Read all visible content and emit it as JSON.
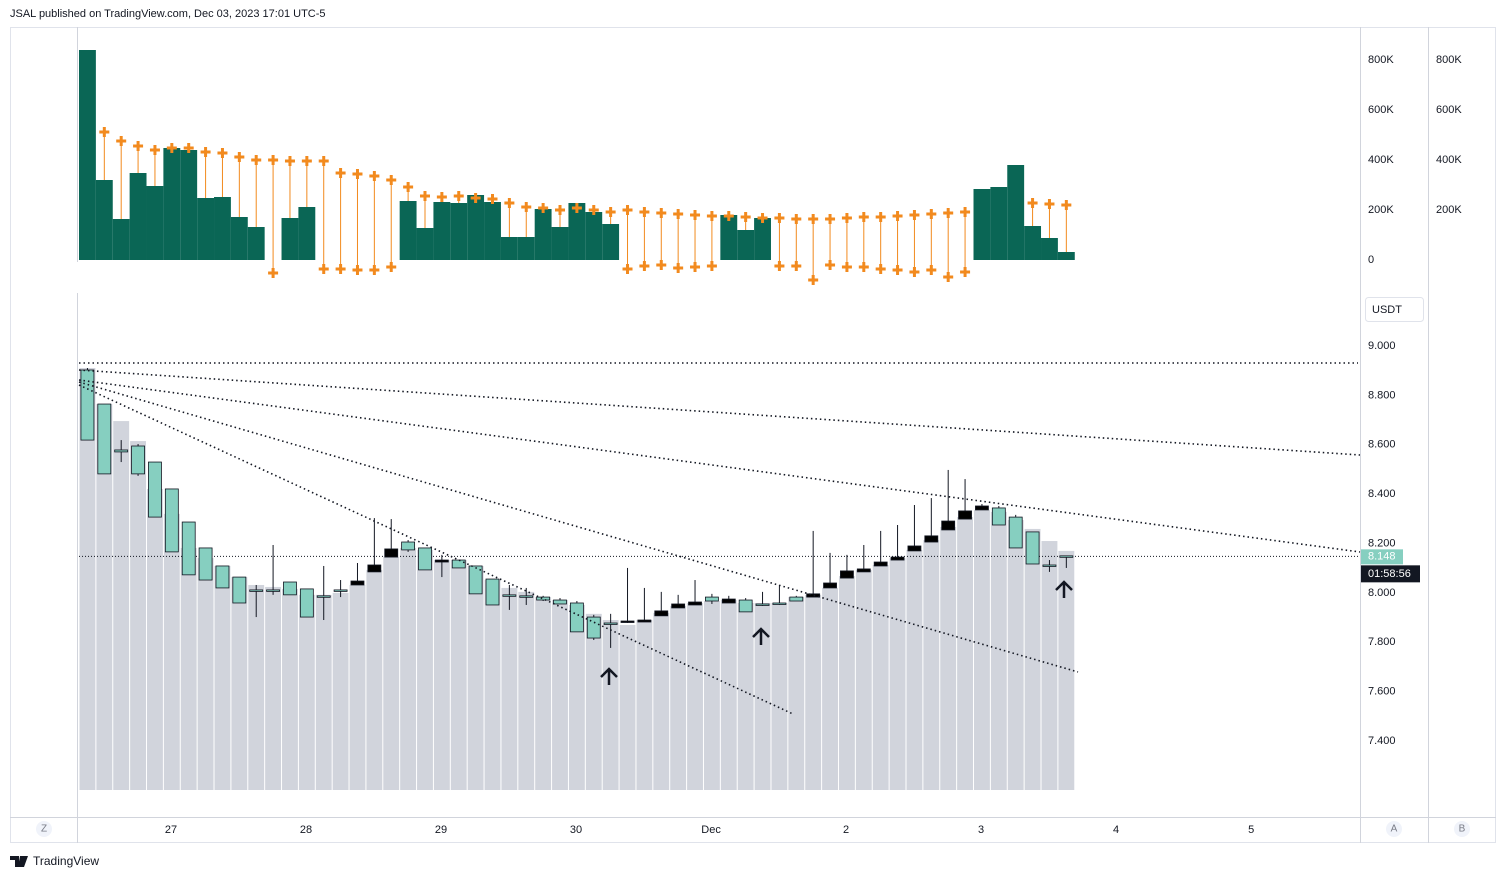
{
  "header": "JSAL published on TradingView.com, Dec 03, 2023 17:01 UTC-5",
  "brand": "TradingView",
  "buttons": [
    "Z",
    "A",
    "B"
  ],
  "currency": "USDT",
  "countdown": "01:58:56",
  "chart_data": [
    {
      "type": "volume",
      "ylim": [
        -120000,
        932000
      ],
      "yticks": [
        0,
        {
          "value": 200000,
          "label": "200K"
        },
        {
          "value": 400000,
          "label": "400K"
        },
        {
          "value": 600000,
          "label": "600K"
        },
        {
          "value": 800000,
          "label": "800K"
        }
      ],
      "color": "#0a6655",
      "cross_color": "#f28a1e",
      "values": [
        840000,
        320000,
        164000,
        348000,
        296000,
        448000,
        440000,
        248000,
        252000,
        172000,
        132000,
        null,
        168000,
        212000,
        null,
        null,
        null,
        null,
        null,
        236000,
        128000,
        232000,
        228000,
        260000,
        232000,
        92000,
        92000,
        204000,
        132000,
        228000,
        192000,
        144000,
        null,
        null,
        null,
        null,
        null,
        null,
        180000,
        120000,
        168000,
        null,
        null,
        null,
        null,
        null,
        null,
        null,
        null,
        null,
        null,
        null,
        null,
        284000,
        292000,
        380000,
        136000,
        88000,
        32000
      ],
      "upper": [
        null,
        512000,
        476000,
        456000,
        440000,
        448000,
        448000,
        432000,
        428000,
        412000,
        400000,
        400000,
        396000,
        396000,
        396000,
        348000,
        344000,
        336000,
        320000,
        292000,
        256000,
        252000,
        256000,
        248000,
        244000,
        228000,
        212000,
        208000,
        200000,
        208000,
        200000,
        192000,
        200000,
        192000,
        188000,
        184000,
        180000,
        176000,
        176000,
        172000,
        168000,
        168000,
        164000,
        164000,
        164000,
        168000,
        172000,
        172000,
        176000,
        180000,
        184000,
        188000,
        192000,
        null,
        null,
        null,
        228000,
        224000,
        220000
      ],
      "lower": [
        null,
        null,
        null,
        null,
        null,
        null,
        null,
        null,
        null,
        null,
        null,
        -52000,
        null,
        null,
        -36000,
        -36000,
        -40000,
        -40000,
        -28000,
        null,
        null,
        null,
        null,
        null,
        null,
        null,
        null,
        null,
        null,
        null,
        null,
        null,
        -36000,
        -24000,
        -20000,
        -32000,
        -28000,
        -24000,
        null,
        null,
        null,
        -24000,
        -24000,
        -80000,
        -20000,
        -28000,
        -28000,
        -36000,
        -40000,
        -48000,
        -40000,
        -68000,
        -48000,
        null,
        null,
        null,
        null,
        null,
        null
      ]
    },
    {
      "type": "candlestick",
      "xlim": [
        -0.5,
        75.4
      ],
      "xticks": [
        {
          "value": 4.95,
          "label": "27"
        },
        {
          "value": 12.95,
          "label": "28"
        },
        {
          "value": 20.95,
          "label": "29"
        },
        {
          "value": 28.95,
          "label": "30"
        },
        {
          "value": 36.95,
          "label": "Dec"
        },
        {
          "value": 44.95,
          "label": "2"
        },
        {
          "value": 52.95,
          "label": "3"
        },
        {
          "value": 60.95,
          "label": "4"
        },
        {
          "value": 68.95,
          "label": "5"
        }
      ],
      "ylim": [
        7.092,
        9.227
      ],
      "yticks": [
        {
          "value": 7.4,
          "label": "7.400"
        },
        {
          "value": 7.6,
          "label": "7.600"
        },
        {
          "value": 7.8,
          "label": "7.800"
        },
        {
          "value": 8,
          "label": "8.000"
        },
        {
          "value": 8.2,
          "label": "8.200"
        },
        {
          "value": 8.4,
          "label": "8.400"
        },
        {
          "value": 8.6,
          "label": "8.600"
        },
        {
          "value": 8.8,
          "label": "8.800"
        },
        {
          "value": 9,
          "label": "9.000"
        }
      ],
      "up_color": "#000000",
      "down_color": "#86cfc0",
      "overlay_color": "#d1d4dc",
      "open": [
        8.903,
        8.765,
        8.579,
        8.595,
        8.53,
        8.421,
        8.287,
        8.182,
        8.109,
        8.064,
        8.012,
        8.012,
        8.044,
        8.016,
        7.988,
        8.012,
        8.032,
        8.085,
        8.145,
        8.206,
        8.182,
        8.125,
        8.133,
        8.109,
        8.056,
        7.992,
        7.988,
        7.983,
        7.971,
        7.959,
        7.902,
        7.878,
        7.882,
        7.882,
        7.907,
        7.939,
        7.951,
        7.983,
        7.959,
        7.971,
        7.955,
        7.959,
        7.983,
        7.983,
        8.02,
        8.06,
        8.085,
        8.109,
        8.133,
        8.17,
        8.206,
        8.255,
        8.299,
        8.336,
        8.344,
        8.307,
        8.247,
        8.113,
        8.15
      ],
      "high": [
        8.911,
        8.765,
        8.619,
        8.603,
        8.53,
        8.421,
        8.287,
        8.182,
        8.109,
        8.064,
        8.032,
        8.194,
        8.044,
        8.016,
        8.109,
        8.052,
        8.121,
        8.303,
        8.299,
        8.214,
        8.182,
        8.154,
        8.133,
        8.109,
        8.056,
        8.032,
        8.02,
        7.988,
        7.979,
        7.967,
        7.911,
        7.915,
        8.101,
        8.02,
        8.004,
        7.992,
        8.052,
        7.996,
        7.988,
        7.979,
        8.004,
        8.032,
        7.988,
        8.251,
        8.162,
        8.154,
        8.194,
        8.251,
        8.275,
        8.356,
        8.384,
        8.498,
        8.461,
        8.36,
        8.352,
        8.316,
        8.247,
        8.133,
        8.15
      ],
      "low": [
        8.619,
        8.482,
        8.53,
        8.474,
        8.307,
        8.166,
        8.073,
        8.052,
        8.02,
        7.959,
        7.902,
        7.992,
        7.992,
        7.902,
        7.89,
        7.983,
        8.032,
        8.085,
        8.145,
        8.166,
        8.093,
        8.064,
        8.101,
        7.996,
        7.951,
        7.931,
        7.951,
        7.967,
        7.955,
        7.842,
        7.809,
        7.777,
        7.878,
        7.882,
        7.907,
        7.939,
        7.951,
        7.955,
        7.959,
        7.923,
        7.947,
        7.951,
        7.967,
        7.983,
        8.02,
        8.06,
        8.085,
        8.109,
        8.133,
        8.17,
        8.206,
        8.255,
        8.299,
        8.336,
        8.275,
        8.182,
        8.117,
        8.085,
        8.101
      ],
      "close": [
        8.619,
        8.482,
        8.571,
        8.482,
        8.307,
        8.166,
        8.073,
        8.052,
        8.02,
        7.959,
        8.008,
        8.008,
        7.992,
        7.902,
        7.983,
        8.008,
        8.048,
        8.113,
        8.178,
        8.174,
        8.093,
        8.133,
        8.101,
        7.996,
        7.951,
        7.988,
        7.983,
        7.971,
        7.955,
        7.842,
        7.817,
        7.874,
        7.886,
        7.89,
        7.927,
        7.955,
        7.963,
        7.967,
        7.975,
        7.923,
        7.951,
        7.955,
        7.967,
        7.996,
        8.04,
        8.089,
        8.097,
        8.125,
        8.145,
        8.19,
        8.231,
        8.291,
        8.332,
        8.352,
        8.275,
        8.182,
        8.117,
        8.109,
        8.148
      ],
      "overlay": [
        8.911,
        8.765,
        8.696,
        8.615,
        8.421,
        8.32,
        8.182,
        8.141,
        8.109,
        8.064,
        8.032,
        8.024,
        8.016,
        7.992,
        7.992,
        8.0,
        8.032,
        8.093,
        8.145,
        8.182,
        8.174,
        8.133,
        8.133,
        8.109,
        8.052,
        8.02,
        8.004,
        7.983,
        7.971,
        7.951,
        7.915,
        7.89,
        7.87,
        7.89,
        7.919,
        7.947,
        7.959,
        7.967,
        7.971,
        7.959,
        7.959,
        7.959,
        7.983,
        7.992,
        8.02,
        8.068,
        8.093,
        8.113,
        8.141,
        8.174,
        8.214,
        8.267,
        8.307,
        8.336,
        8.328,
        8.295,
        8.259,
        8.21,
        8.17
      ]
    }
  ]
}
